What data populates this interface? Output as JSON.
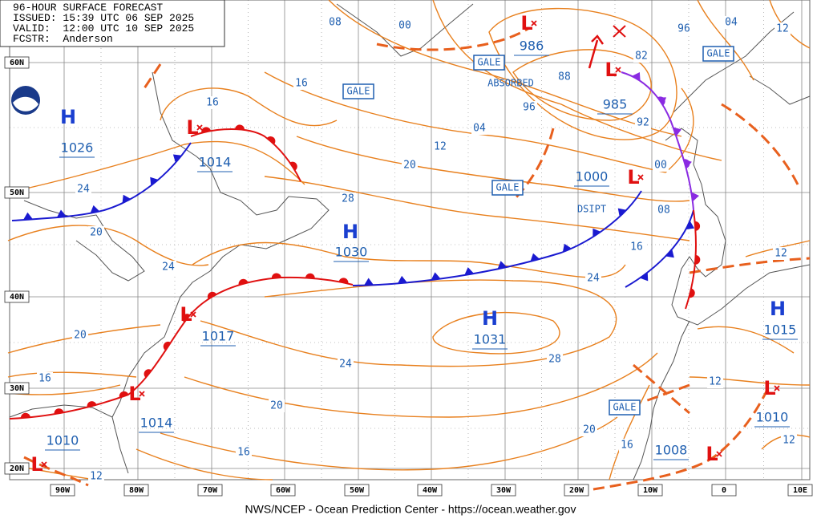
{
  "header": {
    "lines": [
      "96-HOUR SURFACE FORECAST",
      "ISSUED: 15:39 UTC 06 SEP 2025",
      "VALID:  12:00 UTC 10 SEP 2025",
      "FCSTR:  Anderson"
    ]
  },
  "latitude_labels": [
    "60N",
    "50N",
    "40N",
    "30N",
    "20N"
  ],
  "longitude_labels": [
    "90W",
    "80W",
    "70W",
    "60W",
    "50W",
    "40W",
    "30W",
    "20W",
    "10W",
    "0",
    "10E"
  ],
  "systems": [
    {
      "symbol": "H",
      "pressure": "1026"
    },
    {
      "symbol": "L",
      "pressure": "1014"
    },
    {
      "symbol": "H",
      "pressure": "1030"
    },
    {
      "symbol": "H",
      "pressure": "1031"
    },
    {
      "symbol": "L",
      "pressure": "1017"
    },
    {
      "symbol": "L",
      "pressure": "1014"
    },
    {
      "symbol": "L",
      "pressure": "1010"
    },
    {
      "symbol": "L",
      "pressure": "986"
    },
    {
      "symbol": "L",
      "pressure": "985"
    },
    {
      "symbol": "L",
      "pressure": "1000"
    },
    {
      "symbol": "L",
      "pressure": "1008"
    },
    {
      "symbol": "H",
      "pressure": "1015"
    },
    {
      "symbol": "L",
      "pressure": "1010"
    }
  ],
  "isobar_labels": [
    "08",
    "00",
    "96",
    "04",
    "12",
    "16",
    "16",
    "88",
    "96",
    "92",
    "04",
    "12",
    "20",
    "28",
    "00",
    "08",
    "16",
    "24",
    "24",
    "20",
    "24",
    "20",
    "12",
    "24",
    "28",
    "16",
    "20",
    "12",
    "20",
    "16",
    "16",
    "12",
    "12",
    "82"
  ],
  "annotations": [
    "GALE",
    "GALE",
    "GALE",
    "GALE",
    "GALE",
    "ABSORBED",
    "DSIPT"
  ],
  "footer": "NWS/NCEP - Ocean Prediction Center - https://ocean.weather.gov"
}
